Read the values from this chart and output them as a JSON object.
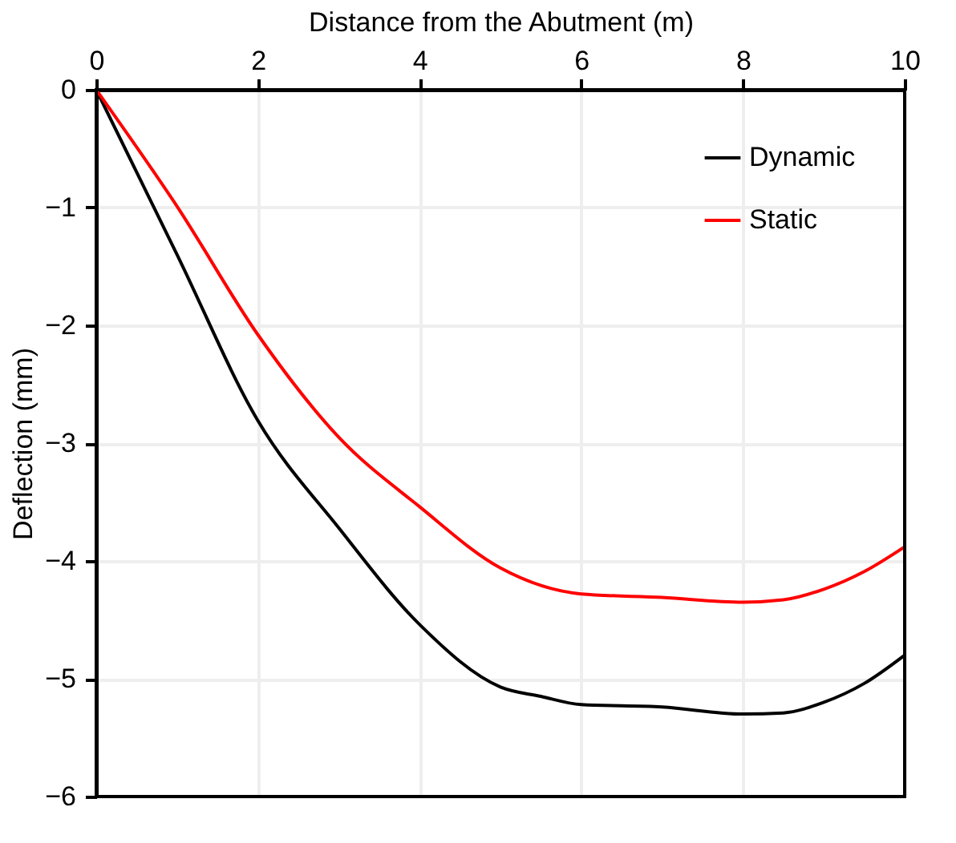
{
  "chart_data": {
    "type": "line",
    "xlabel": "Distance from the Abutment (m)",
    "ylabel": "Deflection (mm)",
    "xlim": [
      0,
      10
    ],
    "xticks": [
      0,
      2,
      4,
      6,
      8,
      10
    ],
    "ylim": [
      -6,
      0
    ],
    "yticks": [
      -6,
      -5,
      -4,
      -3,
      -2,
      -1,
      0
    ],
    "grid": true,
    "legend": "top right",
    "line_style": "solid",
    "marker": "none",
    "series": [
      {
        "name": "Dynamic",
        "color": "#000000",
        "x": [
          0,
          1,
          2,
          3,
          4,
          5,
          5.5,
          6,
          7,
          8,
          8.5,
          9,
          9.5,
          10
        ],
        "values": [
          0,
          -1.4,
          -2.81,
          -3.72,
          -4.54,
          -5.07,
          -5.15,
          -5.22,
          -5.24,
          -5.3,
          -5.29,
          -5.2,
          -5.04,
          -4.8
        ]
      },
      {
        "name": "Static",
        "color": "#ff0000",
        "x": [
          0,
          1,
          2,
          3,
          4,
          5,
          6,
          7,
          8,
          8.5,
          9,
          9.5,
          10
        ],
        "values": [
          0,
          -0.99,
          -2.08,
          -2.95,
          -3.54,
          -4.06,
          -4.28,
          -4.31,
          -4.35,
          -4.33,
          -4.24,
          -4.09,
          -3.88
        ]
      }
    ]
  }
}
